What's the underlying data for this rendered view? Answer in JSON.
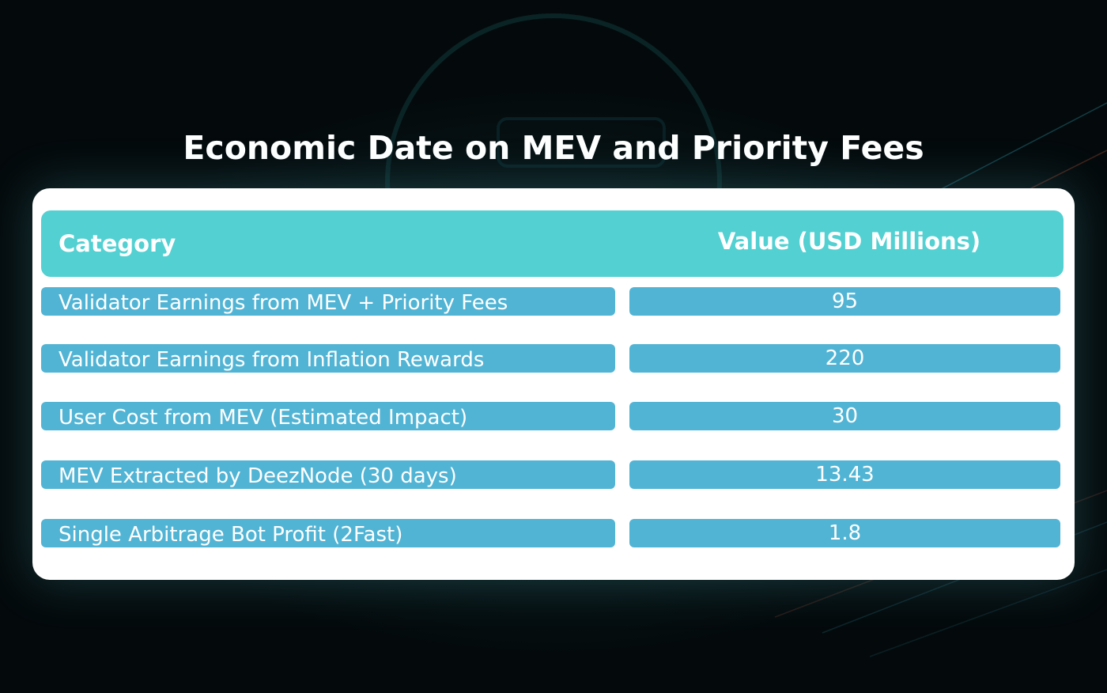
{
  "title": "Economic Date on MEV and Priority Fees",
  "chart_data": {
    "type": "table",
    "title": "Economic Date on MEV and Priority Fees",
    "columns": [
      "Category",
      "Value (USD Millions)"
    ],
    "rows": [
      {
        "category": "Validator Earnings from MEV + Priority Fees",
        "value": "95"
      },
      {
        "category": "Validator Earnings from Inflation Rewards",
        "value": "220"
      },
      {
        "category": "User Cost from MEV (Estimated Impact)",
        "value": "30"
      },
      {
        "category": "MEV Extracted by DeezNode (30 days)",
        "value": "13.43"
      },
      {
        "category": "Single Arbitrage Bot Profit (2Fast)",
        "value": "1.8"
      }
    ]
  },
  "colors": {
    "background": "#040a0c",
    "header": "#53d0d2",
    "row": "#52b4d4",
    "card": "#ffffff",
    "text": "#ffffff"
  }
}
